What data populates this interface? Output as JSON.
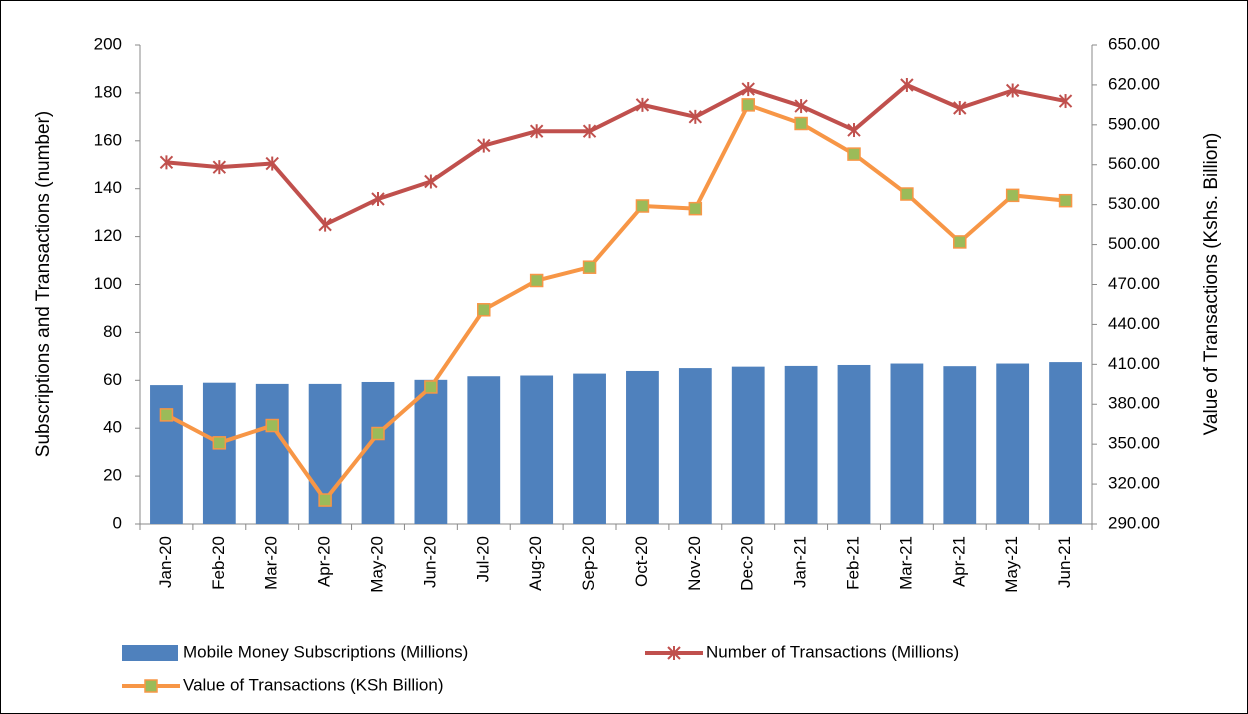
{
  "chart_data": {
    "type": "combo",
    "y_label": "Subscriptions and Transactions (number)",
    "y2_label": "Value of Transactions (Kshs. Billion)",
    "categories": [
      "Jan-20",
      "Feb-20",
      "Mar-20",
      "Apr-20",
      "May-20",
      "Jun-20",
      "Jul-20",
      "Aug-20",
      "Sep-20",
      "Oct-20",
      "Nov-20",
      "Dec-20",
      "Jan-21",
      "Feb-21",
      "Mar-21",
      "Apr-21",
      "May-21",
      "Jun-21"
    ],
    "ylim": [
      0,
      200
    ],
    "yticks": [
      0,
      20,
      40,
      60,
      80,
      100,
      120,
      140,
      160,
      180,
      200
    ],
    "y2lim": [
      290,
      650
    ],
    "y2ticks": [
      {
        "value": 290,
        "label": "290.00"
      },
      {
        "value": 320,
        "label": "320.00"
      },
      {
        "value": 350,
        "label": "350.00"
      },
      {
        "value": 380,
        "label": "380.00"
      },
      {
        "value": 410,
        "label": "410.00"
      },
      {
        "value": 440,
        "label": "440.00"
      },
      {
        "value": 470,
        "label": "470.00"
      },
      {
        "value": 500,
        "label": "500.00"
      },
      {
        "value": 530,
        "label": "530.00"
      },
      {
        "value": 560,
        "label": "560.00"
      },
      {
        "value": 590,
        "label": "590.00"
      },
      {
        "value": 620,
        "label": "620.00"
      },
      {
        "value": 650,
        "label": "650.00"
      }
    ],
    "series": [
      {
        "name": "Mobile Money Subscriptions (Millions)",
        "type": "bar",
        "color": "#4f81bd",
        "values": [
          58,
          59,
          58.5,
          58.5,
          59.3,
          60.2,
          61.7,
          62,
          62.8,
          63.9,
          65.1,
          65.7,
          66,
          66.4,
          67,
          65.9,
          67,
          67.6
        ]
      },
      {
        "name": "Number of Transactions (Millions)",
        "type": "line",
        "marker": "star",
        "color": "#c0504d",
        "values": [
          151,
          149,
          150.5,
          125,
          135.7,
          143,
          158,
          164,
          164,
          175,
          170,
          181.6,
          174.5,
          164.5,
          183.3,
          173.7,
          181,
          176.6
        ]
      },
      {
        "name": "Value of Transactions (KSh Billion)",
        "type": "line",
        "marker": "square",
        "color": "#f79646",
        "marker_fill": "#9bbb59",
        "axis": "y2",
        "values": [
          372,
          351,
          364,
          308,
          358,
          393,
          451,
          473,
          483,
          529,
          527,
          605,
          591,
          568,
          538,
          502,
          537,
          533
        ]
      }
    ]
  }
}
